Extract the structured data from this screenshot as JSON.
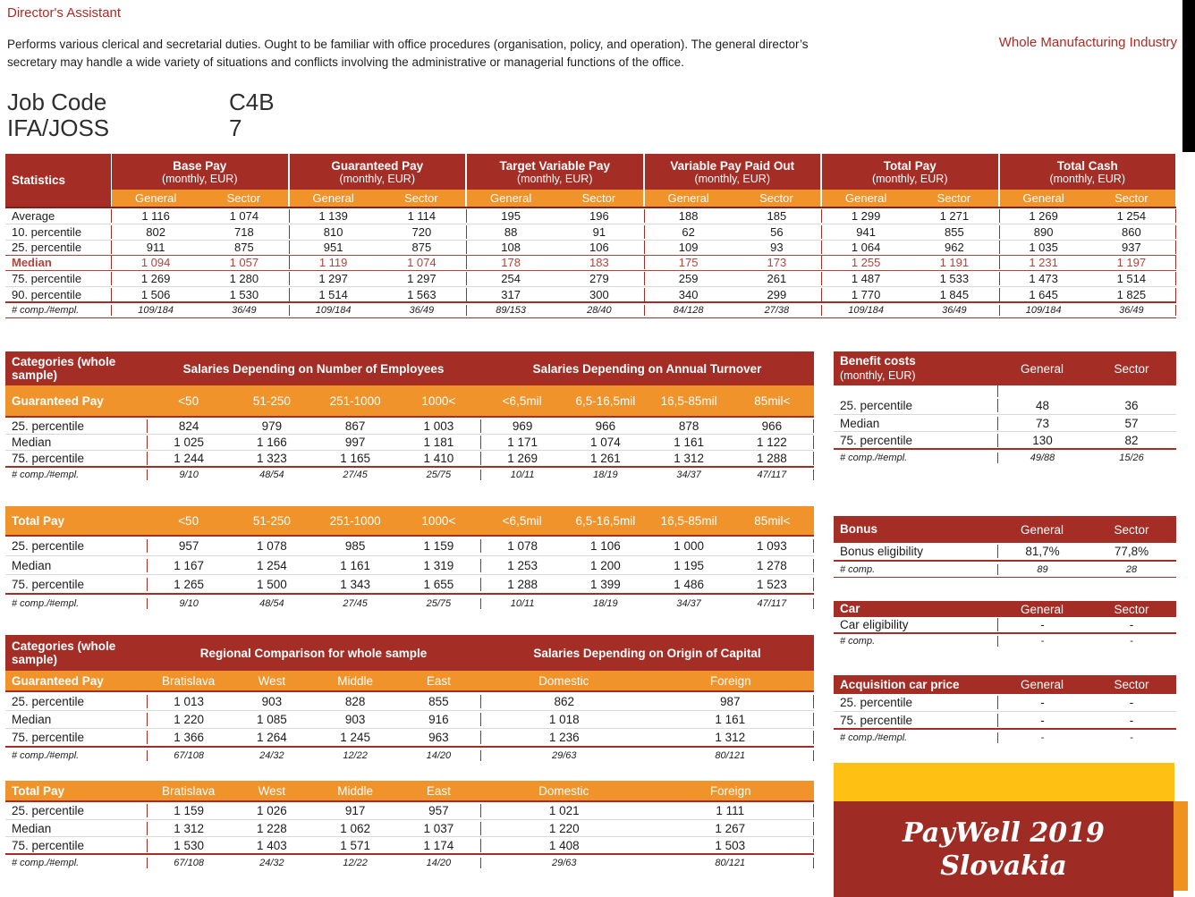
{
  "page": {
    "title": "Director's Assistant",
    "industry": "Whole Manufacturing Industry",
    "description": "Performs various clerical and secretarial duties. Ought to be familiar with office procedures (organisation, policy, and operation). The general director’s secretary may handle a wide variety of situations and conflicts involving the administrative or managerial functions of the office.",
    "job_code_label": "Job Code",
    "job_code_value": "C4B",
    "ifa_joss_label": "IFA/JOSS",
    "ifa_joss_value": "7"
  },
  "colors": {
    "header_red": "#A42D26",
    "band_orange": "#F0932B",
    "median_red": "#B5433C",
    "logo_yellow": "#FDC013",
    "logo_red": "#9E2B24",
    "logo_orange": "#F0921E",
    "corner_black": "#000000"
  },
  "stats_table": {
    "label_header": "Statistics",
    "sub_headers": [
      "General",
      "Sector"
    ],
    "groups": [
      {
        "title": "Base Pay",
        "subtitle": "(monthly, EUR)"
      },
      {
        "title": "Guaranteed Pay",
        "subtitle": "(monthly, EUR)"
      },
      {
        "title": "Target Variable Pay",
        "subtitle": "(monthly, EUR)"
      },
      {
        "title": "Variable Pay Paid Out",
        "subtitle": "(monthly, EUR)"
      },
      {
        "title": "Total Pay",
        "subtitle": "(monthly, EUR)"
      },
      {
        "title": "Total Cash",
        "subtitle": "(monthly, EUR)"
      }
    ],
    "rows": [
      {
        "label": "Average",
        "values": [
          "1 116",
          "1 074",
          "1 139",
          "1 114",
          "195",
          "196",
          "188",
          "185",
          "1 299",
          "1 271",
          "1 269",
          "1 254"
        ]
      },
      {
        "label": "10. percentile",
        "values": [
          "802",
          "718",
          "810",
          "720",
          "88",
          "91",
          "62",
          "56",
          "941",
          "855",
          "890",
          "860"
        ]
      },
      {
        "label": "25. percentile",
        "values": [
          "911",
          "875",
          "951",
          "875",
          "108",
          "106",
          "109",
          "93",
          "1 064",
          "962",
          "1 035",
          "937"
        ]
      },
      {
        "label": "Median",
        "highlight": true,
        "values": [
          "1 094",
          "1 057",
          "1 119",
          "1 074",
          "178",
          "183",
          "175",
          "173",
          "1 255",
          "1 191",
          "1 231",
          "1 197"
        ]
      },
      {
        "label": "75. percentile",
        "values": [
          "1 269",
          "1 280",
          "1 297",
          "1 297",
          "254",
          "279",
          "259",
          "261",
          "1 487",
          "1 533",
          "1 473",
          "1 514"
        ]
      },
      {
        "label": "90. percentile",
        "values": [
          "1 506",
          "1 530",
          "1 514",
          "1 563",
          "317",
          "300",
          "340",
          "299",
          "1 770",
          "1 845",
          "1 645",
          "1 825"
        ]
      },
      {
        "label": "# comp./#empl.",
        "footer": true,
        "values": [
          "109/184",
          "36/49",
          "109/184",
          "36/49",
          "89/153",
          "28/40",
          "84/128",
          "27/38",
          "109/184",
          "36/49",
          "109/184",
          "36/49"
        ]
      }
    ]
  },
  "size_section": {
    "header_label": "Categories (whole sample)",
    "group_titles": [
      "Salaries Depending on Number of Employees",
      "Salaries Depending on Annual Turnover"
    ],
    "col_headers": [
      "<50",
      "51-250",
      "251-1000",
      "1000<",
      "<6,5mil",
      "6,5-16,5mil",
      "16,5-85mil",
      "85mil<"
    ],
    "guaranteed_pay": {
      "label": "Guaranteed Pay",
      "rows": [
        {
          "label": "25. percentile",
          "values": [
            "824",
            "979",
            "867",
            "1 003",
            "969",
            "966",
            "878",
            "966"
          ]
        },
        {
          "label": "Median",
          "values": [
            "1 025",
            "1 166",
            "997",
            "1 181",
            "1 171",
            "1 074",
            "1 161",
            "1 122"
          ]
        },
        {
          "label": "75. percentile",
          "values": [
            "1 244",
            "1 323",
            "1 165",
            "1 410",
            "1 269",
            "1 261",
            "1 312",
            "1 288"
          ]
        },
        {
          "label": "# comp./#empl.",
          "footer": true,
          "values": [
            "9/10",
            "48/54",
            "27/45",
            "25/75",
            "10/11",
            "18/19",
            "34/37",
            "47/117"
          ]
        }
      ]
    },
    "total_pay": {
      "label": "Total Pay",
      "rows": [
        {
          "label": "25. percentile",
          "values": [
            "957",
            "1 078",
            "985",
            "1 159",
            "1 078",
            "1 106",
            "1 000",
            "1 093"
          ]
        },
        {
          "label": "Median",
          "values": [
            "1 167",
            "1 254",
            "1 161",
            "1 319",
            "1 253",
            "1 200",
            "1 195",
            "1 278"
          ]
        },
        {
          "label": "75. percentile",
          "values": [
            "1 265",
            "1 500",
            "1 343",
            "1 655",
            "1 288",
            "1 399",
            "1 486",
            "1 523"
          ]
        },
        {
          "label": "# comp./#empl.",
          "footer": true,
          "values": [
            "9/10",
            "48/54",
            "27/45",
            "25/75",
            "10/11",
            "18/19",
            "34/37",
            "47/117"
          ]
        }
      ]
    }
  },
  "regional_section": {
    "header_label": "Categories (whole sample)",
    "group_titles": [
      "Regional Comparison for whole sample",
      "Salaries Depending on Origin of Capital"
    ],
    "col_headers": [
      "Bratislava",
      "West",
      "Middle",
      "East",
      "Domestic",
      "Foreign"
    ],
    "guaranteed_pay": {
      "label": "Guaranteed Pay",
      "rows": [
        {
          "label": "25. percentile",
          "values": [
            "1 013",
            "903",
            "828",
            "855",
            "862",
            "987"
          ]
        },
        {
          "label": "Median",
          "values": [
            "1 220",
            "1 085",
            "903",
            "916",
            "1 018",
            "1 161"
          ]
        },
        {
          "label": "75. percentile",
          "values": [
            "1 366",
            "1 264",
            "1 245",
            "963",
            "1 236",
            "1 312"
          ]
        },
        {
          "label": "# comp./#empl.",
          "footer": true,
          "values": [
            "67/108",
            "24/32",
            "12/22",
            "14/20",
            "29/63",
            "80/121"
          ]
        }
      ]
    },
    "total_pay": {
      "label": "Total Pay",
      "rows": [
        {
          "label": "25. percentile",
          "values": [
            "1 159",
            "1 026",
            "917",
            "957",
            "1 021",
            "1 111"
          ]
        },
        {
          "label": "Median",
          "values": [
            "1 312",
            "1 228",
            "1 062",
            "1 037",
            "1 220",
            "1 267"
          ]
        },
        {
          "label": "75. percentile",
          "values": [
            "1 530",
            "1 403",
            "1 571",
            "1 174",
            "1 408",
            "1 503"
          ]
        },
        {
          "label": "# comp./#empl.",
          "footer": true,
          "values": [
            "67/108",
            "24/32",
            "12/22",
            "14/20",
            "29/63",
            "80/121"
          ]
        }
      ]
    }
  },
  "side_tables": {
    "col_headers": [
      "General",
      "Sector"
    ],
    "benefit_costs": {
      "title": "Benefit costs",
      "subtitle": "(monthly, EUR)",
      "rows": [
        {
          "label": "25. percentile",
          "values": [
            "48",
            "36"
          ]
        },
        {
          "label": "Median",
          "values": [
            "73",
            "57"
          ]
        },
        {
          "label": "75. percentile",
          "values": [
            "130",
            "82"
          ]
        },
        {
          "label": "# comp./#empl.",
          "footer": true,
          "values": [
            "49/88",
            "15/26"
          ]
        }
      ]
    },
    "bonus": {
      "title": "Bonus",
      "rows": [
        {
          "label": "Bonus eligibility",
          "values": [
            "81,7%",
            "77,8%"
          ]
        },
        {
          "label": "# comp.",
          "footer": true,
          "values": [
            "89",
            "28"
          ]
        }
      ]
    },
    "car": {
      "title": "Car",
      "rows": [
        {
          "label": "Car eligibility",
          "values": [
            "-",
            "-"
          ]
        },
        {
          "label": "# comp.",
          "footer": true,
          "values": [
            "-",
            "-"
          ]
        }
      ]
    },
    "acquisition_car_price": {
      "title": "Acquisition car price",
      "rows": [
        {
          "label": "25. percentile",
          "values": [
            "-",
            "-"
          ]
        },
        {
          "label": "75. percentile",
          "values": [
            "-",
            "-"
          ]
        },
        {
          "label": "# comp./#empl.",
          "footer": true,
          "values": [
            "-",
            "-"
          ]
        }
      ]
    }
  },
  "logo": {
    "line1": "PayWell 2019",
    "line2": "Slovakia"
  }
}
